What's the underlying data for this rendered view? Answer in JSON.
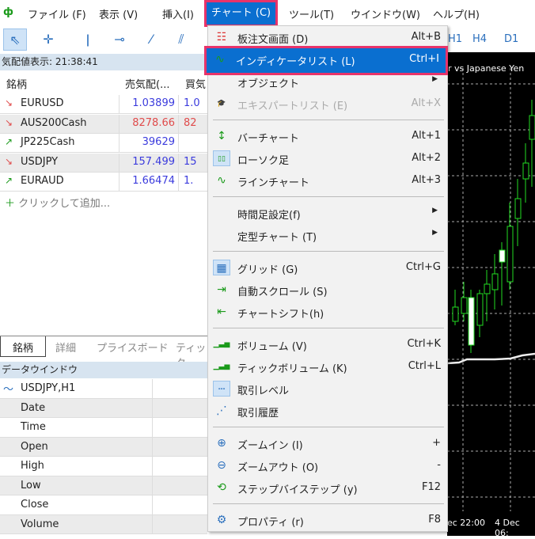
{
  "menubar": {
    "items": [
      "ファイル (F)",
      "表示 (V)",
      "挿入(I)",
      "チャート (C)",
      "ツール(T)",
      "ウインドウ(W)",
      "ヘルプ(H)"
    ]
  },
  "toolbar": {
    "timeframes": [
      "H1",
      "H4",
      "D1"
    ]
  },
  "market_watch": {
    "title": "気配値表示: 21:38:41",
    "columns": [
      "銘柄",
      "売気配(...",
      "買気"
    ],
    "rows": [
      {
        "symbol": "EURUSD",
        "bid": "1.03899",
        "ask": "1.0",
        "dir": "down",
        "bid_color": "#3b3bdd"
      },
      {
        "symbol": "AUS200Cash",
        "bid": "8278.66",
        "ask": "82",
        "dir": "down",
        "bid_color": "#e04b4b"
      },
      {
        "symbol": "JP225Cash",
        "bid": "39629",
        "ask": "",
        "dir": "up",
        "bid_color": "#3b3bdd"
      },
      {
        "symbol": "USDJPY",
        "bid": "157.499",
        "ask": "15",
        "dir": "down",
        "bid_color": "#3b3bdd"
      },
      {
        "symbol": "EURAUD",
        "bid": "1.66474",
        "ask": "1.",
        "dir": "up",
        "bid_color": "#3b3bdd"
      }
    ],
    "add_label": "クリックして追加...",
    "tabs": [
      "銘柄",
      "詳細",
      "プライスボード",
      "ティック"
    ]
  },
  "data_window": {
    "title": "データウインドウ",
    "symbol": "USDJPY,H1",
    "fields": [
      "Date",
      "Time",
      "Open",
      "High",
      "Low",
      "Close",
      "Volume"
    ]
  },
  "chart": {
    "title": "r vs Japanese Yen",
    "time_labels": [
      "ec 22:00",
      "4 Dec 06:"
    ]
  },
  "chart_menu": {
    "items": [
      {
        "label": "板注文画面 (D)",
        "shortcut": "Alt+B",
        "icon": "order-book-icon"
      },
      {
        "label": "インディケータリスト (L)",
        "shortcut": "Ctrl+I",
        "icon": "indicator-list-icon",
        "highlighted": true
      },
      {
        "label": "オブジェクト",
        "shortcut": "",
        "icon": "",
        "submenu": true
      },
      {
        "label": "エキスパートリスト (E)",
        "shortcut": "Alt+X",
        "icon": "expert-icon",
        "disabled": true
      },
      {
        "label": "バーチャート",
        "shortcut": "Alt+1",
        "icon": "bar-chart-icon"
      },
      {
        "label": "ローソク足",
        "shortcut": "Alt+2",
        "icon": "candlestick-icon",
        "checked": true
      },
      {
        "label": "ラインチャート",
        "shortcut": "Alt+3",
        "icon": "line-chart-icon"
      },
      {
        "label": "時間足設定(f)",
        "shortcut": "",
        "icon": "",
        "submenu": true
      },
      {
        "label": "定型チャート (T)",
        "shortcut": "",
        "icon": "",
        "submenu": true
      },
      {
        "label": "グリッド (G)",
        "shortcut": "Ctrl+G",
        "icon": "grid-icon",
        "checked": true
      },
      {
        "label": "自動スクロール (S)",
        "shortcut": "",
        "icon": "auto-scroll-icon"
      },
      {
        "label": "チャートシフト(h)",
        "shortcut": "",
        "icon": "chart-shift-icon"
      },
      {
        "label": "ボリューム (V)",
        "shortcut": "Ctrl+K",
        "icon": "volume-icon"
      },
      {
        "label": "ティックボリューム (K)",
        "shortcut": "Ctrl+L",
        "icon": "tick-volume-icon"
      },
      {
        "label": "取引レベル",
        "shortcut": "",
        "icon": "trade-levels-icon",
        "checked": true
      },
      {
        "label": "取引履歴",
        "shortcut": "",
        "icon": "trade-history-icon"
      },
      {
        "label": "ズームイン (I)",
        "shortcut": "+",
        "icon": "zoom-in-icon"
      },
      {
        "label": "ズームアウト (O)",
        "shortcut": "-",
        "icon": "zoom-out-icon"
      },
      {
        "label": "ステップバイステップ (y)",
        "shortcut": "F12",
        "icon": "step-by-step-icon"
      },
      {
        "label": "プロパティ (r)",
        "shortcut": "F8",
        "icon": "properties-icon"
      }
    ]
  },
  "colors": {
    "accent": "#0a6fd0",
    "highlight_border": "#e8336a",
    "candle": "#22dd22"
  }
}
